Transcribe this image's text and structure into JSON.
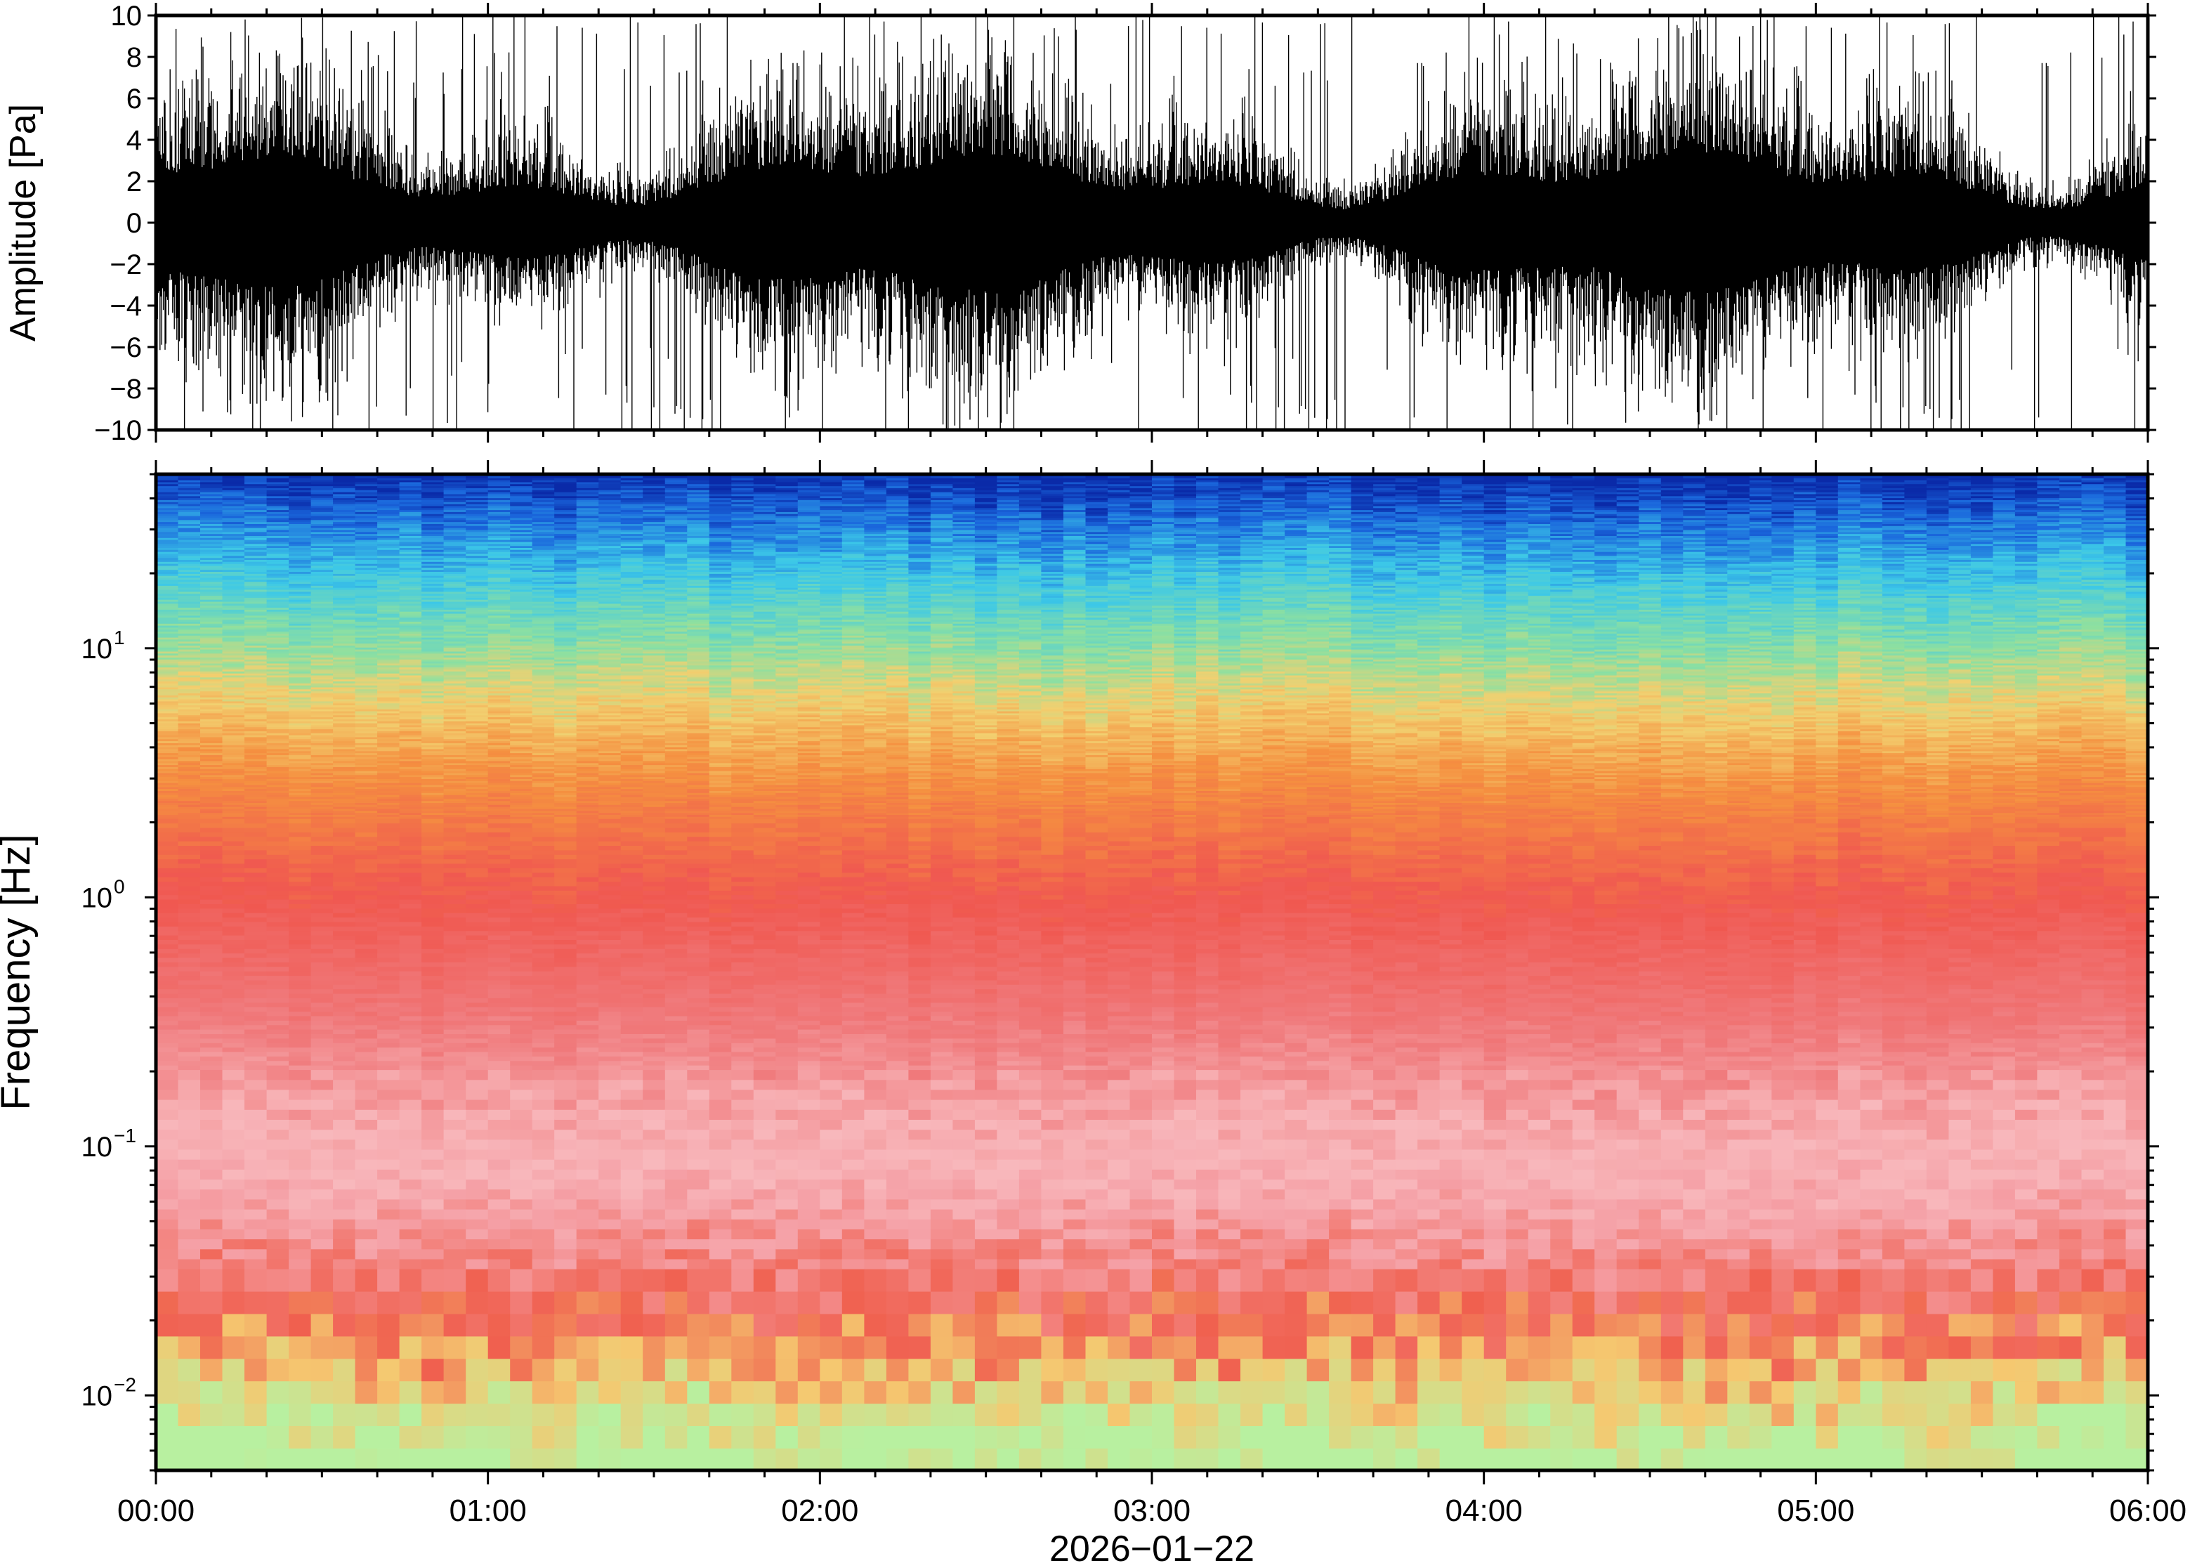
{
  "chart_data": [
    {
      "type": "line",
      "panel": "waveform",
      "title": "",
      "xlabel": "",
      "ylabel": "Amplitude [Pa]",
      "ylim": [
        -10,
        10
      ],
      "yticks": [
        -10,
        -8,
        -6,
        -4,
        -2,
        0,
        2,
        4,
        6,
        8,
        10
      ],
      "ytick_labels": [
        "−10",
        "−8",
        "−6",
        "−4",
        "−2",
        "0",
        "2",
        "4",
        "6",
        "8",
        "10"
      ],
      "xlim": [
        "00:00",
        "06:00"
      ],
      "grid": false,
      "description_series": {
        "color": "#000000",
        "typical_envelope_pa": 4.5,
        "peak_pa": 10
      }
    },
    {
      "type": "heatmap",
      "panel": "spectrogram",
      "title": "",
      "ylabel": "Frequency [Hz]",
      "yscale": "log",
      "ylim": [
        0.005,
        50
      ],
      "yticks": [
        0.01,
        0.1,
        1,
        10
      ],
      "ytick_labels": [
        {
          "base": "10",
          "exp": "−2"
        },
        {
          "base": "10",
          "exp": "−1"
        },
        {
          "base": "10",
          "exp": "0"
        },
        {
          "base": "10",
          "exp": "1"
        }
      ],
      "xlabel": "2026−01−22",
      "xlim": [
        "00:00",
        "06:00"
      ],
      "xticks": [
        "00:00",
        "01:00",
        "02:00",
        "03:00",
        "04:00",
        "05:00",
        "06:00"
      ],
      "grid": false,
      "colormap": [
        "#8ee6c9",
        "#c9f29b",
        "#f2ef8c",
        "#f7b655",
        "#f5813f",
        "#f05a4f",
        "#f08a8e",
        "#f7c2c4",
        "#ffe8e8",
        "#3ec5e6",
        "#1d6fe0",
        "#0a2fb4"
      ],
      "approx_color_by_frequency": [
        {
          "freq_hz": 0.006,
          "color": "#b8f0a0"
        },
        {
          "freq_hz": 0.012,
          "color": "#f5c870"
        },
        {
          "freq_hz": 0.02,
          "color": "#f0604f"
        },
        {
          "freq_hz": 0.05,
          "color": "#f5a0a6"
        },
        {
          "freq_hz": 0.1,
          "color": "#f8b8bc"
        },
        {
          "freq_hz": 0.3,
          "color": "#f07a7c"
        },
        {
          "freq_hz": 1,
          "color": "#f05850"
        },
        {
          "freq_hz": 3,
          "color": "#f59040"
        },
        {
          "freq_hz": 6,
          "color": "#f2d070"
        },
        {
          "freq_hz": 10,
          "color": "#8ee0a0"
        },
        {
          "freq_hz": 20,
          "color": "#3cc8e8"
        },
        {
          "freq_hz": 35,
          "color": "#1a66dc"
        },
        {
          "freq_hz": 50,
          "color": "#0a2aa8"
        }
      ]
    }
  ]
}
